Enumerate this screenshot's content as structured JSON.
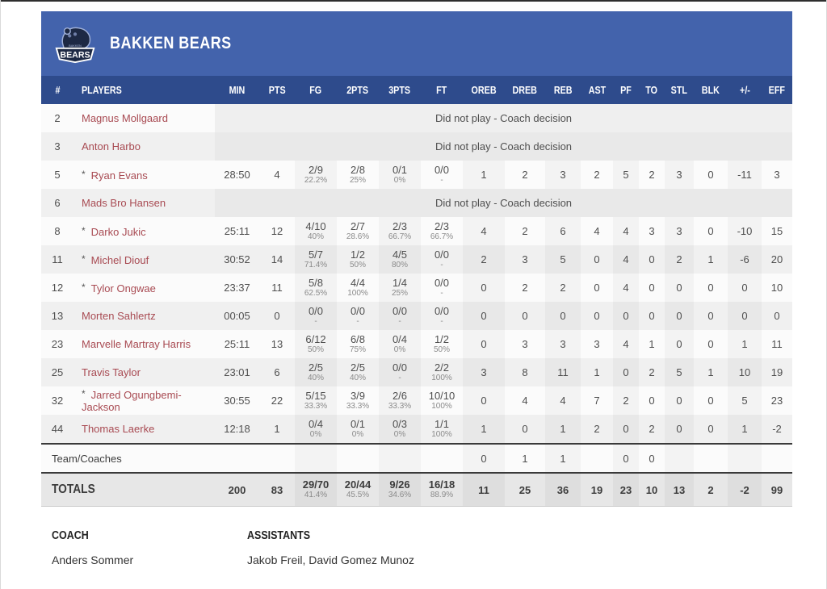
{
  "team": {
    "name": "BAKKEN BEARS",
    "logo_banner_text": "BEARS",
    "logo_small_text": "BAKKEN"
  },
  "colors": {
    "header_blue": "#4363ac",
    "subheader_blue": "#2e4b8c",
    "player_name_red": "#a84a52",
    "logo_navy": "#1d2944"
  },
  "table": {
    "columns": [
      "#",
      "PLAYERS",
      "MIN",
      "PTS",
      "FG",
      "2PTS",
      "3PTS",
      "FT",
      "OREB",
      "DREB",
      "REB",
      "AST",
      "PF",
      "TO",
      "STL",
      "BLK",
      "+/-",
      "EFF"
    ],
    "dnp_text": "Did not play - Coach decision",
    "rows": [
      {
        "num": "2",
        "name": "Magnus Mollgaard",
        "starter": false,
        "dnp": true
      },
      {
        "num": "3",
        "name": "Anton Harbo",
        "starter": false,
        "dnp": true
      },
      {
        "num": "5",
        "name": "Ryan Evans",
        "starter": true,
        "dnp": false,
        "min": "28:50",
        "pts": "4",
        "fg": "2/9",
        "fg_pct": "22.2%",
        "p2": "2/8",
        "p2_pct": "25%",
        "p3": "0/1",
        "p3_pct": "0%",
        "ft": "0/0",
        "ft_pct": "-",
        "oreb": "1",
        "dreb": "2",
        "reb": "3",
        "ast": "2",
        "pf": "5",
        "to": "2",
        "stl": "3",
        "blk": "0",
        "pm": "-11",
        "eff": "3"
      },
      {
        "num": "6",
        "name": "Mads Bro Hansen",
        "starter": false,
        "dnp": true
      },
      {
        "num": "8",
        "name": "Darko Jukic",
        "starter": true,
        "dnp": false,
        "min": "25:11",
        "pts": "12",
        "fg": "4/10",
        "fg_pct": "40%",
        "p2": "2/7",
        "p2_pct": "28.6%",
        "p3": "2/3",
        "p3_pct": "66.7%",
        "ft": "2/3",
        "ft_pct": "66.7%",
        "oreb": "4",
        "dreb": "2",
        "reb": "6",
        "ast": "4",
        "pf": "4",
        "to": "3",
        "stl": "3",
        "blk": "0",
        "pm": "-10",
        "eff": "15"
      },
      {
        "num": "11",
        "name": "Michel Diouf",
        "starter": true,
        "dnp": false,
        "min": "30:52",
        "pts": "14",
        "fg": "5/7",
        "fg_pct": "71.4%",
        "p2": "1/2",
        "p2_pct": "50%",
        "p3": "4/5",
        "p3_pct": "80%",
        "ft": "0/0",
        "ft_pct": "-",
        "oreb": "2",
        "dreb": "3",
        "reb": "5",
        "ast": "0",
        "pf": "4",
        "to": "0",
        "stl": "2",
        "blk": "1",
        "pm": "-6",
        "eff": "20"
      },
      {
        "num": "12",
        "name": "Tylor Ongwae",
        "starter": true,
        "dnp": false,
        "min": "23:37",
        "pts": "11",
        "fg": "5/8",
        "fg_pct": "62.5%",
        "p2": "4/4",
        "p2_pct": "100%",
        "p3": "1/4",
        "p3_pct": "25%",
        "ft": "0/0",
        "ft_pct": "-",
        "oreb": "0",
        "dreb": "2",
        "reb": "2",
        "ast": "0",
        "pf": "4",
        "to": "0",
        "stl": "0",
        "blk": "0",
        "pm": "0",
        "eff": "10"
      },
      {
        "num": "13",
        "name": "Morten Sahlertz",
        "starter": false,
        "dnp": false,
        "min": "00:05",
        "pts": "0",
        "fg": "0/0",
        "fg_pct": "-",
        "p2": "0/0",
        "p2_pct": "-",
        "p3": "0/0",
        "p3_pct": "-",
        "ft": "0/0",
        "ft_pct": "-",
        "oreb": "0",
        "dreb": "0",
        "reb": "0",
        "ast": "0",
        "pf": "0",
        "to": "0",
        "stl": "0",
        "blk": "0",
        "pm": "0",
        "eff": "0"
      },
      {
        "num": "23",
        "name": "Marvelle Martray Harris",
        "starter": false,
        "dnp": false,
        "min": "25:11",
        "pts": "13",
        "fg": "6/12",
        "fg_pct": "50%",
        "p2": "6/8",
        "p2_pct": "75%",
        "p3": "0/4",
        "p3_pct": "0%",
        "ft": "1/2",
        "ft_pct": "50%",
        "oreb": "0",
        "dreb": "3",
        "reb": "3",
        "ast": "3",
        "pf": "4",
        "to": "1",
        "stl": "0",
        "blk": "0",
        "pm": "1",
        "eff": "11"
      },
      {
        "num": "25",
        "name": "Travis Taylor",
        "starter": false,
        "dnp": false,
        "min": "23:01",
        "pts": "6",
        "fg": "2/5",
        "fg_pct": "40%",
        "p2": "2/5",
        "p2_pct": "40%",
        "p3": "0/0",
        "p3_pct": "-",
        "ft": "2/2",
        "ft_pct": "100%",
        "oreb": "3",
        "dreb": "8",
        "reb": "11",
        "ast": "1",
        "pf": "0",
        "to": "2",
        "stl": "5",
        "blk": "1",
        "pm": "10",
        "eff": "19"
      },
      {
        "num": "32",
        "name": "Jarred Ogungbemi-Jackson",
        "starter": true,
        "dnp": false,
        "min": "30:55",
        "pts": "22",
        "fg": "5/15",
        "fg_pct": "33.3%",
        "p2": "3/9",
        "p2_pct": "33.3%",
        "p3": "2/6",
        "p3_pct": "33.3%",
        "ft": "10/10",
        "ft_pct": "100%",
        "oreb": "0",
        "dreb": "4",
        "reb": "4",
        "ast": "7",
        "pf": "2",
        "to": "0",
        "stl": "0",
        "blk": "0",
        "pm": "5",
        "eff": "23"
      },
      {
        "num": "44",
        "name": "Thomas Laerke",
        "starter": false,
        "dnp": false,
        "min": "12:18",
        "pts": "1",
        "fg": "0/4",
        "fg_pct": "0%",
        "p2": "0/1",
        "p2_pct": "0%",
        "p3": "0/3",
        "p3_pct": "0%",
        "ft": "1/1",
        "ft_pct": "100%",
        "oreb": "1",
        "dreb": "0",
        "reb": "1",
        "ast": "2",
        "pf": "0",
        "to": "2",
        "stl": "0",
        "blk": "0",
        "pm": "1",
        "eff": "-2"
      }
    ],
    "team_row": {
      "label": "Team/Coaches",
      "min": "",
      "pts": "",
      "fg": "",
      "p2": "",
      "p3": "",
      "ft": "",
      "oreb": "0",
      "dreb": "1",
      "reb": "1",
      "ast": "",
      "pf": "0",
      "to": "0",
      "stl": "",
      "blk": "",
      "pm": "",
      "eff": ""
    },
    "totals": {
      "label": "TOTALS",
      "min": "200",
      "pts": "83",
      "fg": "29/70",
      "fg_pct": "41.4%",
      "p2": "20/44",
      "p2_pct": "45.5%",
      "p3": "9/26",
      "p3_pct": "34.6%",
      "ft": "16/18",
      "ft_pct": "88.9%",
      "oreb": "11",
      "dreb": "25",
      "reb": "36",
      "ast": "19",
      "pf": "23",
      "to": "10",
      "stl": "13",
      "blk": "2",
      "pm": "-2",
      "eff": "99"
    }
  },
  "footer": {
    "coach_label": "COACH",
    "coach_name": "Anders Sommer",
    "assistants_label": "ASSISTANTS",
    "assistants_names": "Jakob Freil, David Gomez Munoz"
  }
}
